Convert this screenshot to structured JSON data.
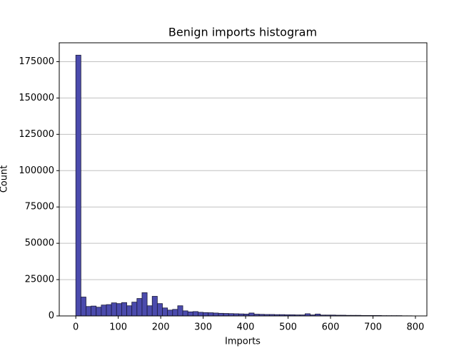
{
  "chart_data": {
    "type": "histogram",
    "title": "Benign imports histogram",
    "x_label": "Imports",
    "y_label": "Count",
    "bins": [
      0,
      12,
      24,
      36,
      48,
      60,
      72,
      84,
      96,
      108,
      120,
      132,
      144,
      156,
      168,
      180,
      192,
      204,
      216,
      228,
      240,
      252,
      264,
      276,
      288,
      300,
      312,
      324,
      336,
      348,
      360,
      372,
      384,
      396,
      408,
      420,
      432,
      444,
      456,
      468,
      480,
      492,
      504,
      516,
      528,
      540,
      552,
      564,
      576,
      588,
      600,
      612,
      624,
      636,
      648,
      660,
      672,
      684,
      696,
      708,
      720,
      732,
      744,
      756,
      768,
      780,
      792
    ],
    "values": [
      179500,
      13000,
      6500,
      6800,
      6000,
      7500,
      7800,
      9000,
      8500,
      9200,
      7000,
      9500,
      12000,
      16000,
      7000,
      13500,
      8500,
      5500,
      4000,
      4500,
      7000,
      3500,
      2800,
      3000,
      2500,
      2300,
      2200,
      2000,
      1800,
      1700,
      1600,
      1500,
      1400,
      1300,
      2000,
      1200,
      1100,
      1000,
      1000,
      900,
      900,
      800,
      800,
      700,
      700,
      1500,
      700,
      1300,
      600,
      600,
      600,
      500,
      500,
      400,
      400,
      400,
      300,
      300,
      300,
      300,
      200,
      200,
      200,
      200,
      100,
      100
    ],
    "color": "#4b4bad",
    "edgecolor": "#1a1a3a",
    "xlim": [
      -39,
      827
    ],
    "ylim": [
      0,
      188000
    ],
    "xticks": [
      0,
      100,
      200,
      300,
      400,
      500,
      600,
      700,
      800
    ],
    "yticks": [
      0,
      25000,
      50000,
      75000,
      100000,
      125000,
      150000,
      175000
    ],
    "grid": true
  }
}
